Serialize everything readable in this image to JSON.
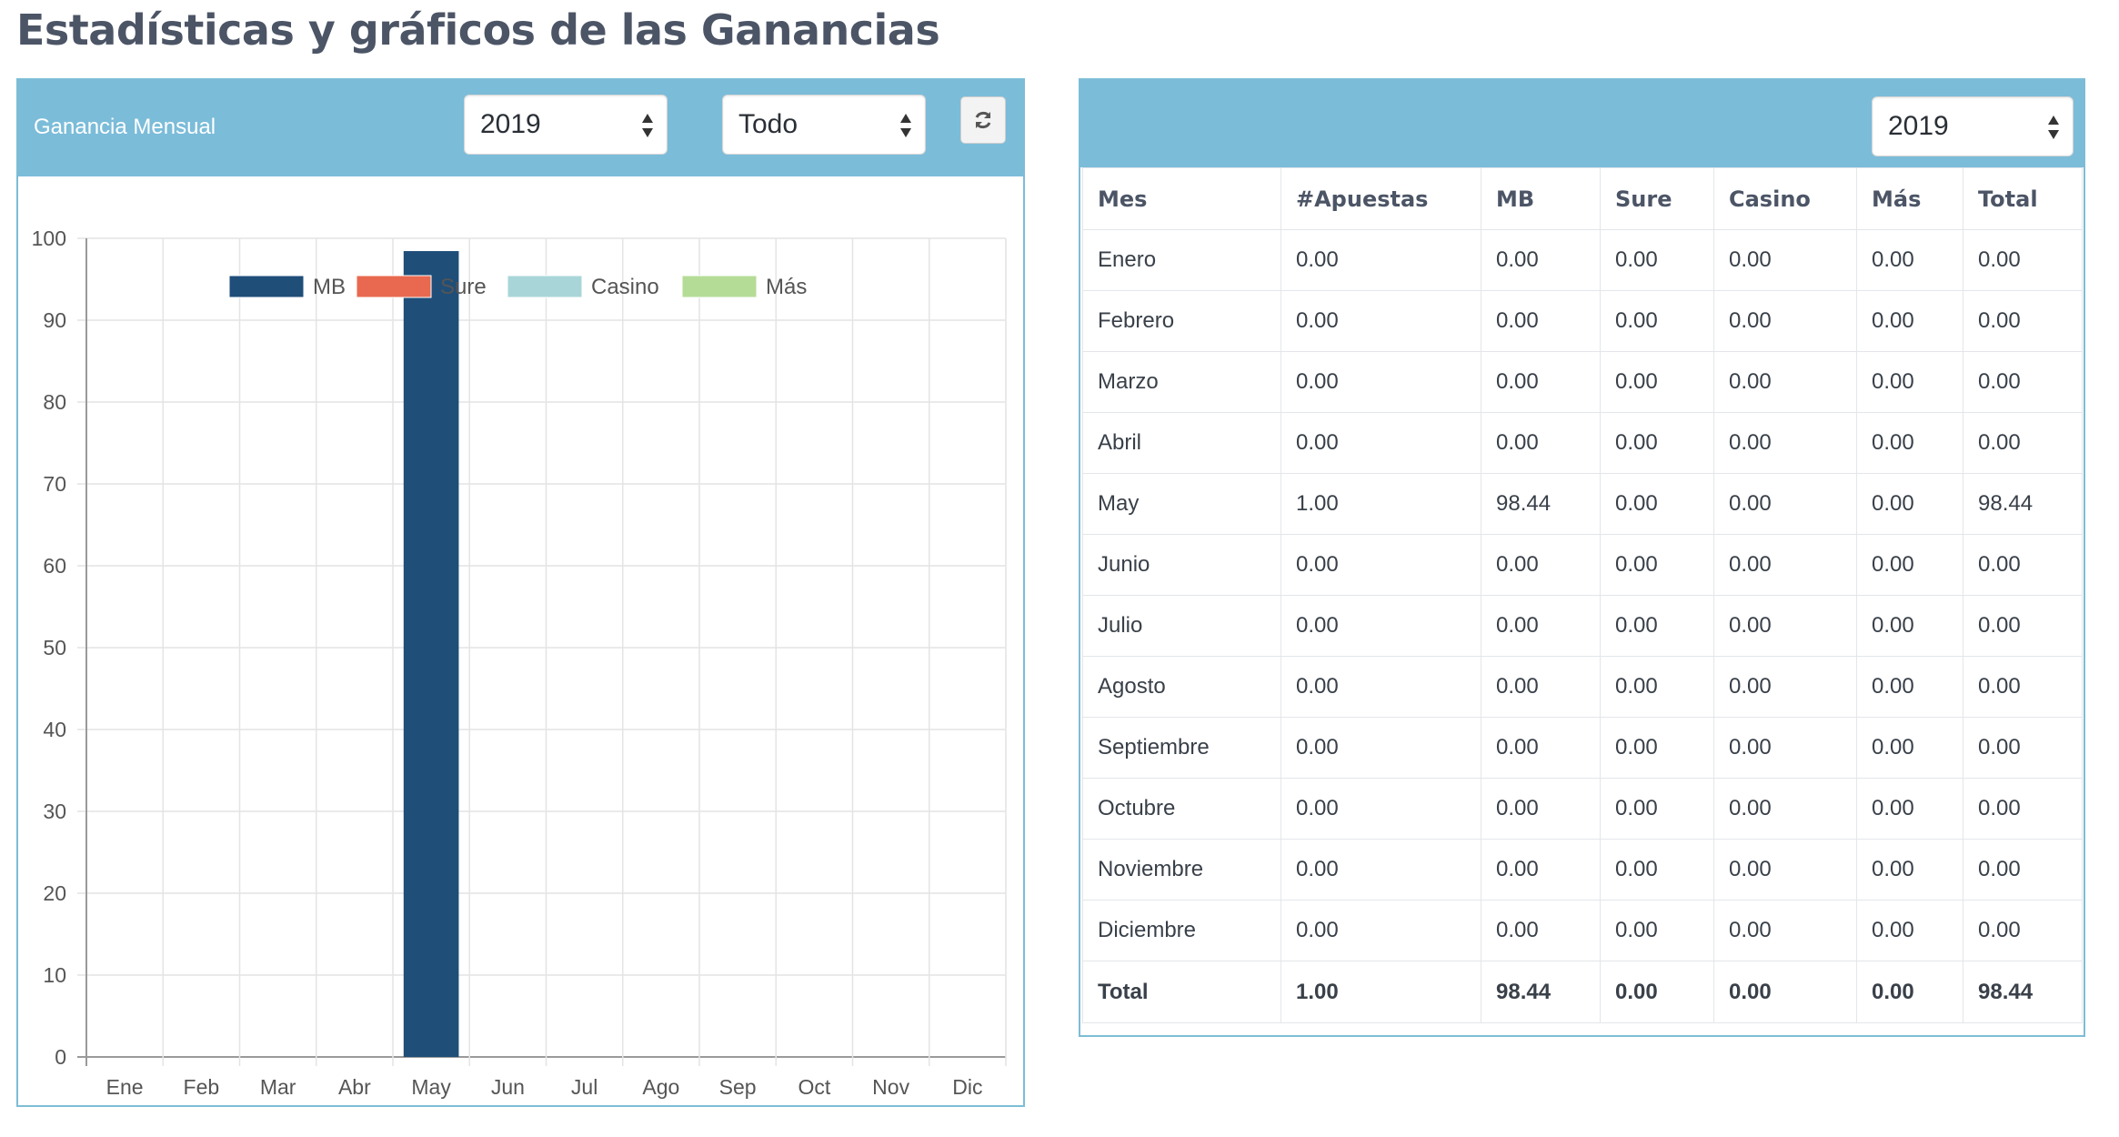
{
  "page_title": "Estadísticas y gráficos de las Ganancias",
  "left_panel": {
    "title": "Ganancia Mensual",
    "year_select": "2019",
    "type_select": "Todo",
    "refresh_icon": "refresh-icon"
  },
  "right_panel": {
    "year_select": "2019"
  },
  "chart_data": {
    "type": "bar",
    "categories": [
      "Ene",
      "Feb",
      "Mar",
      "Abr",
      "May",
      "Jun",
      "Jul",
      "Ago",
      "Sep",
      "Oct",
      "Nov",
      "Dic"
    ],
    "series": [
      {
        "name": "MB",
        "color": "#1f4e79",
        "values": [
          0,
          0,
          0,
          0,
          98.44,
          0,
          0,
          0,
          0,
          0,
          0,
          0
        ]
      },
      {
        "name": "Sure",
        "color": "#e8694f",
        "values": [
          0,
          0,
          0,
          0,
          0,
          0,
          0,
          0,
          0,
          0,
          0,
          0
        ]
      },
      {
        "name": "Casino",
        "color": "#a8d6d8",
        "values": [
          0,
          0,
          0,
          0,
          0,
          0,
          0,
          0,
          0,
          0,
          0,
          0
        ]
      },
      {
        "name": "Más",
        "color": "#b5dc97",
        "values": [
          0,
          0,
          0,
          0,
          0,
          0,
          0,
          0,
          0,
          0,
          0,
          0
        ]
      }
    ],
    "ylim": [
      0,
      100
    ],
    "yticks": [
      0,
      10,
      20,
      30,
      40,
      50,
      60,
      70,
      80,
      90,
      100
    ],
    "grid": true,
    "legend": "top-center"
  },
  "table": {
    "headers": [
      "Mes",
      "#Apuestas",
      "MB",
      "Sure",
      "Casino",
      "Más",
      "Total"
    ],
    "rows": [
      [
        "Enero",
        "0.00",
        "0.00",
        "0.00",
        "0.00",
        "0.00",
        "0.00"
      ],
      [
        "Febrero",
        "0.00",
        "0.00",
        "0.00",
        "0.00",
        "0.00",
        "0.00"
      ],
      [
        "Marzo",
        "0.00",
        "0.00",
        "0.00",
        "0.00",
        "0.00",
        "0.00"
      ],
      [
        "Abril",
        "0.00",
        "0.00",
        "0.00",
        "0.00",
        "0.00",
        "0.00"
      ],
      [
        "May",
        "1.00",
        "98.44",
        "0.00",
        "0.00",
        "0.00",
        "98.44"
      ],
      [
        "Junio",
        "0.00",
        "0.00",
        "0.00",
        "0.00",
        "0.00",
        "0.00"
      ],
      [
        "Julio",
        "0.00",
        "0.00",
        "0.00",
        "0.00",
        "0.00",
        "0.00"
      ],
      [
        "Agosto",
        "0.00",
        "0.00",
        "0.00",
        "0.00",
        "0.00",
        "0.00"
      ],
      [
        "Septiembre",
        "0.00",
        "0.00",
        "0.00",
        "0.00",
        "0.00",
        "0.00"
      ],
      [
        "Octubre",
        "0.00",
        "0.00",
        "0.00",
        "0.00",
        "0.00",
        "0.00"
      ],
      [
        "Noviembre",
        "0.00",
        "0.00",
        "0.00",
        "0.00",
        "0.00",
        "0.00"
      ],
      [
        "Diciembre",
        "0.00",
        "0.00",
        "0.00",
        "0.00",
        "0.00",
        "0.00"
      ]
    ],
    "total": [
      "Total",
      "1.00",
      "98.44",
      "0.00",
      "0.00",
      "0.00",
      "98.44"
    ]
  }
}
